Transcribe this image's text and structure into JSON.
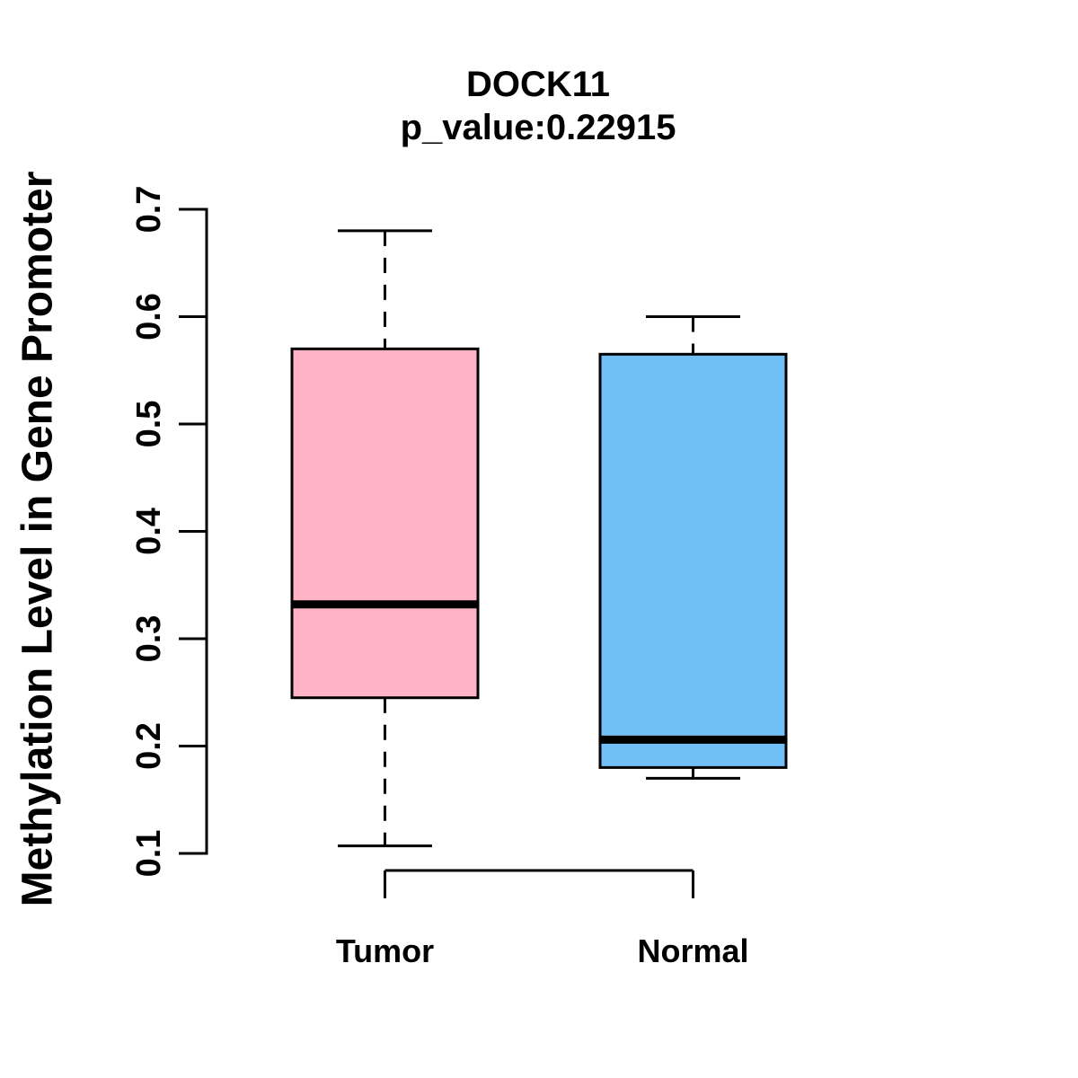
{
  "chart_data": {
    "type": "boxplot",
    "title": "DOCK11",
    "subtitle": "p_value:0.22915",
    "ylabel": "Methylation Level in Gene Promoter",
    "xlabel": "",
    "ylim": [
      0.1,
      0.7
    ],
    "y_ticks": [
      0.1,
      0.2,
      0.3,
      0.4,
      0.5,
      0.6,
      0.7
    ],
    "grid": false,
    "legend": "none",
    "categories": [
      "Tumor",
      "Normal"
    ],
    "series": [
      {
        "name": "Tumor",
        "min": 0.107,
        "q1": 0.245,
        "median": 0.332,
        "q3": 0.57,
        "max": 0.68,
        "fill": "#FFB3C4"
      },
      {
        "name": "Normal",
        "min": 0.17,
        "q1": 0.18,
        "median": 0.206,
        "q3": 0.565,
        "max": 0.6,
        "fill": "#72BEF6"
      }
    ],
    "colors": {
      "stroke": "#000000",
      "background": "#FFFFFF",
      "tumor_fill": "#FFB3C4",
      "normal_fill": "#72BEF6"
    }
  }
}
